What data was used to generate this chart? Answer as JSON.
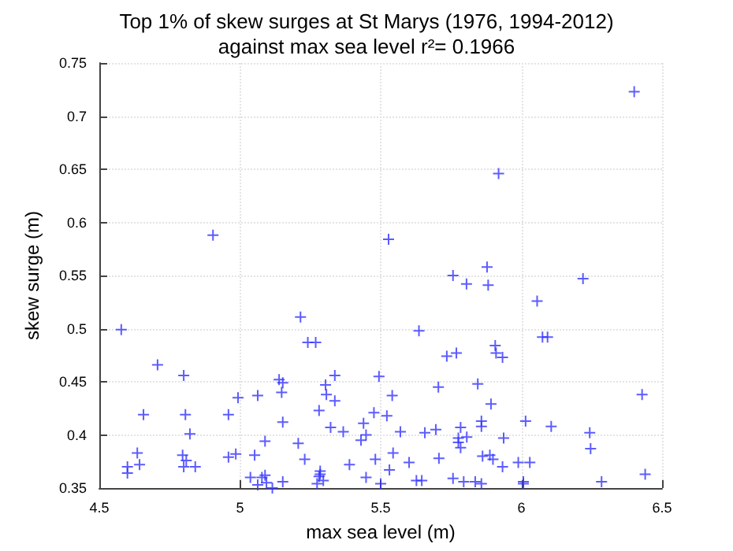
{
  "chart_data": {
    "type": "scatter",
    "title": "Top 1% of skew surges at St Marys (1976, 1994-2012)",
    "subtitle": "against max sea level r²= 0.1966",
    "xlabel": "max sea level (m)",
    "ylabel": "skew surge (m)",
    "xlim": [
      4.5,
      6.5
    ],
    "ylim": [
      0.35,
      0.75
    ],
    "xticks": [
      4.5,
      5,
      5.5,
      6,
      6.5
    ],
    "yticks": [
      0.35,
      0.4,
      0.45,
      0.5,
      0.55,
      0.6,
      0.65,
      0.7,
      0.75
    ],
    "grid": true,
    "marker": "cross",
    "series": [
      {
        "color": "#3333ff",
        "x": [
          6.401,
          5.919,
          5.878,
          5.757,
          5.805,
          5.882,
          6.219,
          4.904,
          5.528,
          4.578,
          4.707,
          4.8,
          4.657,
          4.806,
          4.822,
          4.635,
          4.796,
          4.809,
          4.643,
          4.6,
          4.6,
          4.8,
          4.841,
          4.993,
          4.959,
          4.985,
          4.959,
          5.063,
          5.052,
          5.089,
          5.037,
          5.078,
          5.089,
          5.063,
          5.094,
          5.115,
          5.139,
          5.152,
          5.148,
          5.152,
          5.152,
          5.215,
          5.241,
          5.269,
          5.207,
          5.23,
          5.281,
          5.285,
          5.285,
          5.281,
          5.274,
          5.296,
          5.304,
          5.307,
          5.337,
          5.337,
          5.322,
          5.367,
          5.389,
          5.43,
          5.439,
          5.448,
          5.448,
          5.476,
          5.481,
          5.494,
          5.5,
          5.522,
          5.531,
          5.541,
          5.544,
          5.57,
          6.056,
          5.636,
          6.075,
          6.093,
          5.907,
          5.735,
          5.769,
          5.91,
          5.933,
          5.845,
          5.705,
          6.429,
          5.892,
          5.858,
          5.858,
          6.015,
          6.106,
          5.657,
          5.696,
          5.784,
          5.776,
          5.806,
          5.776,
          5.937,
          6.243,
          5.784,
          6.246,
          5.707,
          5.862,
          5.888,
          5.899,
          5.601,
          5.989,
          6.03,
          5.933,
          5.627,
          5.646,
          5.757,
          5.795,
          5.836,
          5.858,
          6.007,
          6.007,
          6.285,
          6.44
        ],
        "values": [
          0.723,
          0.646,
          0.558,
          0.55,
          0.542,
          0.541,
          0.547,
          0.588,
          0.584,
          0.499,
          0.466,
          0.456,
          0.419,
          0.419,
          0.401,
          0.383,
          0.381,
          0.376,
          0.372,
          0.37,
          0.364,
          0.37,
          0.37,
          0.435,
          0.419,
          0.382,
          0.379,
          0.437,
          0.381,
          0.394,
          0.36,
          0.36,
          0.362,
          0.353,
          0.355,
          0.35,
          0.452,
          0.449,
          0.44,
          0.412,
          0.356,
          0.511,
          0.487,
          0.487,
          0.392,
          0.377,
          0.423,
          0.366,
          0.363,
          0.361,
          0.354,
          0.357,
          0.447,
          0.438,
          0.456,
          0.432,
          0.407,
          0.403,
          0.372,
          0.395,
          0.411,
          0.4,
          0.36,
          0.421,
          0.377,
          0.455,
          0.354,
          0.418,
          0.367,
          0.437,
          0.383,
          0.403,
          0.526,
          0.498,
          0.492,
          0.492,
          0.484,
          0.474,
          0.477,
          0.477,
          0.473,
          0.448,
          0.445,
          0.438,
          0.429,
          0.413,
          0.408,
          0.413,
          0.408,
          0.402,
          0.405,
          0.407,
          0.397,
          0.398,
          0.393,
          0.397,
          0.402,
          0.388,
          0.387,
          0.378,
          0.38,
          0.381,
          0.377,
          0.374,
          0.374,
          0.374,
          0.37,
          0.357,
          0.357,
          0.359,
          0.356,
          0.356,
          0.354,
          0.356,
          0.354,
          0.356,
          0.363
        ]
      }
    ]
  }
}
